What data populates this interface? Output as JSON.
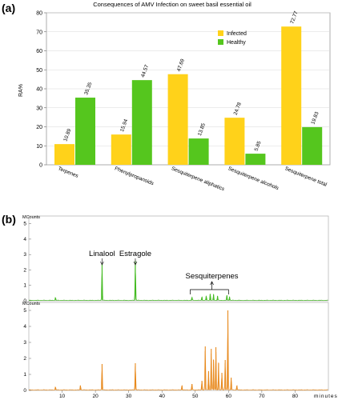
{
  "panels": {
    "a": "(a)",
    "b": "(b)"
  },
  "colors": {
    "infected": "#FFD21A",
    "healthy": "#55C61E",
    "trace_top": "#44BB22",
    "trace_bottom": "#E88A1E",
    "axis": "#888888"
  },
  "chart_data": [
    {
      "type": "bar",
      "title": "Consequences of AMV Infection on sweet basil essential oil",
      "ylabel": "RA%",
      "xlabel": "",
      "ylim": [
        0,
        80
      ],
      "yticks": [
        0,
        10,
        20,
        30,
        40,
        50,
        60,
        70,
        80
      ],
      "grid": true,
      "legend": "upper-right",
      "categories": [
        "Terpenes",
        "Phenylpropanoids",
        "Sesquiterpene aliphatics",
        "Sesquiterpene alcohols",
        "Sesquiterpene total"
      ],
      "series": [
        {
          "name": "Infected",
          "values": [
            10.89,
            15.94,
            47.69,
            24.78,
            72.77
          ],
          "labels": [
            "10.89",
            "15.94",
            "47.69",
            "24.78",
            "72.77"
          ]
        },
        {
          "name": "Healthy",
          "values": [
            35.35,
            44.57,
            13.85,
            5.85,
            19.83
          ],
          "labels": [
            "35.35",
            "44.57",
            "13.85",
            "5.85",
            "19.83"
          ]
        }
      ]
    },
    {
      "type": "line",
      "trace": "top",
      "ylabel": "MCounts",
      "yticks": [
        0,
        1,
        2,
        3,
        4,
        5
      ],
      "ylim": [
        0,
        5.5
      ],
      "xlim": [
        0,
        90
      ],
      "annotations": [
        {
          "text": "Linalool",
          "x": 22.0
        },
        {
          "text": "Estragole",
          "x": 32.0
        },
        {
          "text": "Sesquiterpenes",
          "x": 55.0,
          "range": [
            48.5,
            60.0
          ]
        }
      ],
      "peaks": [
        {
          "x": 22.0,
          "y": 2.4
        },
        {
          "x": 32.0,
          "y": 2.6
        },
        {
          "x": 8.0,
          "y": 0.2
        },
        {
          "x": 49.0,
          "y": 0.22
        },
        {
          "x": 52.0,
          "y": 0.25
        },
        {
          "x": 53.3,
          "y": 0.3
        },
        {
          "x": 54.5,
          "y": 0.45
        },
        {
          "x": 55.5,
          "y": 0.4
        },
        {
          "x": 56.7,
          "y": 0.3
        },
        {
          "x": 59.5,
          "y": 0.35
        },
        {
          "x": 60.3,
          "y": 0.25
        }
      ]
    },
    {
      "type": "line",
      "trace": "bottom",
      "ylabel": "MCounts",
      "xlabel": "minutes",
      "yticks": [
        0,
        1,
        2,
        3,
        4,
        5
      ],
      "ylim": [
        0,
        5.5
      ],
      "xlim": [
        0,
        90
      ],
      "xticks": [
        10,
        20,
        30,
        40,
        50,
        60,
        70,
        80
      ],
      "peaks": [
        {
          "x": 8.0,
          "y": 0.2
        },
        {
          "x": 15.5,
          "y": 0.3
        },
        {
          "x": 22.0,
          "y": 1.65
        },
        {
          "x": 32.0,
          "y": 1.7
        },
        {
          "x": 46.0,
          "y": 0.3
        },
        {
          "x": 49.0,
          "y": 0.4
        },
        {
          "x": 52.0,
          "y": 0.6
        },
        {
          "x": 53.0,
          "y": 2.75
        },
        {
          "x": 54.0,
          "y": 1.2
        },
        {
          "x": 54.8,
          "y": 2.6
        },
        {
          "x": 55.5,
          "y": 1.9
        },
        {
          "x": 56.2,
          "y": 2.7
        },
        {
          "x": 57.0,
          "y": 1.7
        },
        {
          "x": 58.0,
          "y": 1.1
        },
        {
          "x": 59.0,
          "y": 1.9
        },
        {
          "x": 59.8,
          "y": 5.0
        },
        {
          "x": 60.8,
          "y": 0.8
        },
        {
          "x": 62.5,
          "y": 0.3
        }
      ]
    }
  ]
}
